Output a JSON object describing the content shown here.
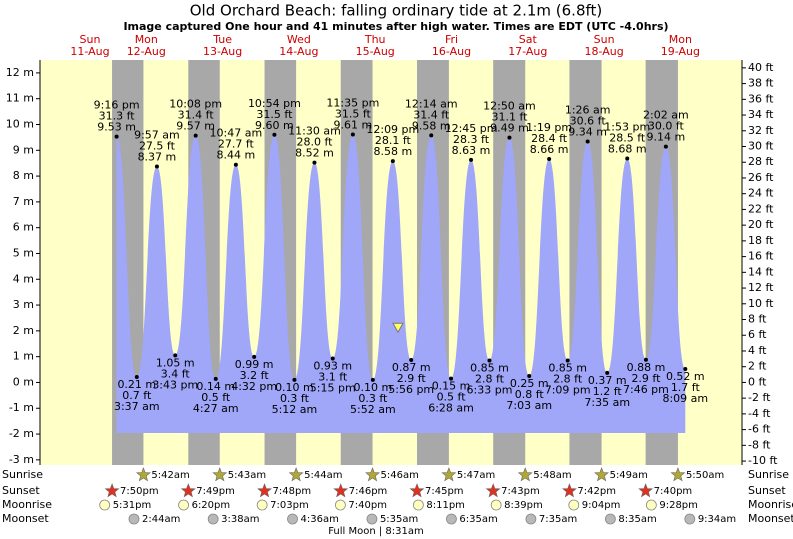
{
  "chart_data": {
    "type": "tide",
    "title": "Old Orchard Beach: falling  ordinary tide at 2.1m (6.8ft)",
    "subtitle": "Image captured One hour and 41 minutes after high water. Times are EDT (UTC -4.0hrs)",
    "current_tide": 2.1,
    "days": [
      "Sun",
      "Mon",
      "Tue",
      "Wed",
      "Thu",
      "Fri",
      "Sat",
      "Sun",
      "Mon"
    ],
    "dates": [
      "11-Aug",
      "12-Aug",
      "13-Aug",
      "14-Aug",
      "15-Aug",
      "16-Aug",
      "17-Aug",
      "18-Aug",
      "19-Aug"
    ],
    "high_tides": {
      "times": [
        "9:16 pm",
        "9:57 am",
        "10:08 pm",
        "10:47 am",
        "10:54 pm",
        "11:30 am",
        "11:35 pm",
        "12:09 pm",
        "12:14 am",
        "12:45 pm",
        "12:50 am",
        "1:19 pm",
        "1:26 am",
        "1:53 pm",
        "2:02 am"
      ],
      "values": [
        9.53,
        8.37,
        9.57,
        8.44,
        9.6,
        8.52,
        9.61,
        8.58,
        9.58,
        8.63,
        9.49,
        8.66,
        9.34,
        8.68,
        9.14
      ],
      "value_labels": [
        "9.53 m",
        "8.37 m",
        "9.57 m",
        "8.44 m",
        "9.60 m",
        "8.52 m",
        "9.61 m",
        "8.58 m",
        "9.58 m",
        "8.63 m",
        "9.49 m",
        "8.66 m",
        "9.34 m",
        "8.68 m",
        "9.14 m"
      ],
      "feet": [
        31.3,
        27.5,
        31.4,
        27.7,
        31.5,
        28.0,
        31.5,
        28.1,
        31.4,
        28.3,
        31.1,
        28.4,
        30.6,
        28.5,
        30.0
      ],
      "feet_labels": [
        "31.3 ft",
        "27.5 ft",
        "31.4 ft",
        "27.7 ft",
        "31.5 ft",
        "28.0 ft",
        "31.5 ft",
        "28.1 ft",
        "31.4 ft",
        "28.3 ft",
        "31.1 ft",
        "28.4 ft",
        "30.6 ft",
        "28.5 ft",
        "30.0 ft"
      ]
    },
    "low_tides": {
      "times": [
        "3:37 am",
        "3:43 pm",
        "4:27 am",
        "4:32 pm",
        "5:12 am",
        "5:15 pm",
        "5:52 am",
        "5:56 pm",
        "6:28 am",
        "6:33 pm",
        "7:03 am",
        "7:09 pm",
        "7:35 am",
        "7:46 pm",
        "8:09 am"
      ],
      "values": [
        0.21,
        1.05,
        0.14,
        0.99,
        0.1,
        0.93,
        0.1,
        0.87,
        0.15,
        0.85,
        0.25,
        0.85,
        0.37,
        0.88,
        0.52
      ],
      "value_labels": [
        "0.21 m",
        "1.05 m",
        "0.14 m",
        "0.99 m",
        "0.10 m",
        "0.93 m",
        "0.10 m",
        "0.87 m",
        "0.15 m",
        "0.85 m",
        "0.25 m",
        "0.85 m",
        "0.37 m",
        "0.88 m",
        "0.52 m"
      ],
      "feet": [
        0.7,
        3.4,
        0.5,
        3.2,
        0.3,
        3.1,
        0.3,
        2.9,
        0.5,
        2.8,
        0.8,
        2.8,
        1.2,
        2.9,
        1.7
      ],
      "feet_labels": [
        "0.7 ft",
        "3.4 ft",
        "0.5 ft",
        "3.2 ft",
        "0.3 ft",
        "3.1 ft",
        "0.3 ft",
        "2.9 ft",
        "0.5 ft",
        "2.8 ft",
        "0.8 ft",
        "2.8 ft",
        "1.2 ft",
        "2.9 ft",
        "1.7 ft"
      ]
    },
    "ylim": [
      -3.2,
      12.5
    ],
    "yticks": [
      {
        "value": -3,
        "label": "-3 m"
      },
      {
        "value": -2,
        "label": "-2 m"
      },
      {
        "value": -1,
        "label": "-1 m"
      },
      {
        "value": 0,
        "label": "0 m"
      },
      {
        "value": 1,
        "label": "1 m"
      },
      {
        "value": 2,
        "label": "2 m"
      },
      {
        "value": 3,
        "label": "3 m"
      },
      {
        "value": 4,
        "label": "4 m"
      },
      {
        "value": 5,
        "label": "5 m"
      },
      {
        "value": 6,
        "label": "6 m"
      },
      {
        "value": 7,
        "label": "7 m"
      },
      {
        "value": 8,
        "label": "8 m"
      },
      {
        "value": 9,
        "label": "9 m"
      },
      {
        "value": 10,
        "label": "10 m"
      },
      {
        "value": 11,
        "label": "11 m"
      },
      {
        "value": 12,
        "label": "12 m"
      }
    ],
    "y2lim": [
      -10.5,
      41.0
    ],
    "y2ticks": [
      {
        "value": -10,
        "label": "-10 ft"
      },
      {
        "value": -8,
        "label": "-8 ft"
      },
      {
        "value": -6,
        "label": "-6 ft"
      },
      {
        "value": -4,
        "label": "-4 ft"
      },
      {
        "value": -2,
        "label": "-2 ft"
      },
      {
        "value": 0,
        "label": "0 ft"
      },
      {
        "value": 2,
        "label": "2 ft"
      },
      {
        "value": 4,
        "label": "4 ft"
      },
      {
        "value": 6,
        "label": "6 ft"
      },
      {
        "value": 8,
        "label": "8 ft"
      },
      {
        "value": 10,
        "label": "10 ft"
      },
      {
        "value": 12,
        "label": "12 ft"
      },
      {
        "value": 14,
        "label": "14 ft"
      },
      {
        "value": 16,
        "label": "16 ft"
      },
      {
        "value": 18,
        "label": "18 ft"
      },
      {
        "value": 20,
        "label": "20 ft"
      },
      {
        "value": 22,
        "label": "22 ft"
      },
      {
        "value": 24,
        "label": "24 ft"
      },
      {
        "value": 26,
        "label": "26 ft"
      },
      {
        "value": 28,
        "label": "28 ft"
      },
      {
        "value": 30,
        "label": "30 ft"
      },
      {
        "value": 32,
        "label": "32 ft"
      },
      {
        "value": 34,
        "label": "34 ft"
      },
      {
        "value": 36,
        "label": "36 ft"
      },
      {
        "value": 38,
        "label": "38 ft"
      },
      {
        "value": 40,
        "label": "40 ft"
      }
    ],
    "row_labels": [
      "Sunrise",
      "Sunset",
      "Moonrise",
      "Moonset"
    ],
    "sunrise": [
      "5:42am",
      "5:43am",
      "5:44am",
      "5:46am",
      "5:47am",
      "5:48am",
      "5:49am",
      "5:50am"
    ],
    "sunset": [
      "7:50pm",
      "7:49pm",
      "7:48pm",
      "7:46pm",
      "7:45pm",
      "7:43pm",
      "7:42pm",
      "7:40pm"
    ],
    "moonrise": [
      "5:31pm",
      "6:20pm",
      "7:03pm",
      "7:40pm",
      "8:11pm",
      "8:39pm",
      "9:04pm",
      "9:28pm"
    ],
    "moonset": [
      "2:44am",
      "3:38am",
      "4:36am",
      "5:35am",
      "6:35am",
      "7:35am",
      "8:35am",
      "9:34am"
    ],
    "moon_phase": "Full Moon | 8:31am",
    "colors": {
      "day": "#ffffc8",
      "night": "#a8a8a8",
      "water": "#a0a6f8",
      "sunrise": "#b0a830",
      "sunset": "#e03020",
      "moonrise": "#ffffc0",
      "moonset": "#b8b8b8",
      "marker": "#ffff66"
    }
  }
}
